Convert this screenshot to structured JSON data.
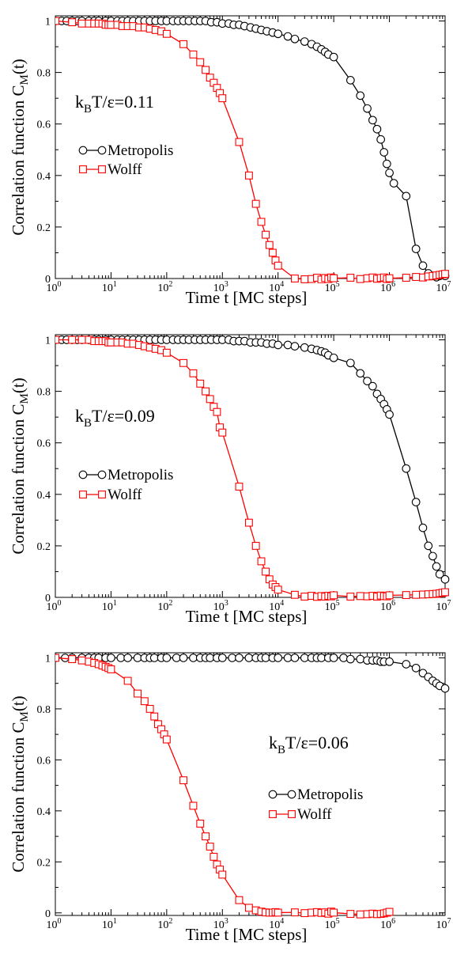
{
  "chart_data": [
    {
      "type": "line",
      "x_scale": "log",
      "xlim": [
        1,
        10000000
      ],
      "ylim": [
        0,
        1.02
      ],
      "xlabel": "Time t [MC steps]",
      "ylabel": "Correlation function C_M(t)",
      "x_ticks": [
        1,
        10,
        100,
        1000,
        10000,
        100000,
        1000000,
        10000000
      ],
      "y_ticks": [
        0,
        0.2,
        0.4,
        0.6,
        0.8,
        1
      ],
      "y_tick_labels": [
        "0",
        "0.2",
        "0.4",
        "0.6",
        "0.8",
        "1"
      ],
      "annotation": {
        "base": "k",
        "sub": "B",
        "rest": "T/ε=0.11"
      },
      "legend": {
        "position": "center-left"
      },
      "series": [
        {
          "name": "Metropolis",
          "color": "#000000",
          "marker": "circle",
          "x": [
            1,
            1.3,
            1.6,
            2,
            2.5,
            3,
            4,
            5,
            6,
            8,
            10,
            13,
            16,
            20,
            25,
            32,
            40,
            50,
            63,
            80,
            100,
            130,
            160,
            200,
            250,
            320,
            400,
            500,
            630,
            800,
            1000,
            1300,
            1600,
            2000,
            2500,
            3200,
            4000,
            5000,
            6300,
            8000,
            10000,
            15000,
            20000,
            30000,
            40000,
            50000,
            60000,
            70000,
            80000,
            100000,
            200000,
            300000,
            400000,
            500000,
            600000,
            700000,
            800000,
            900000,
            1000000,
            1200000,
            2000000,
            3000000,
            4000000,
            5000000,
            6000000,
            7000000,
            8000000,
            10000000
          ],
          "y": [
            1,
            1,
            1,
            1,
            1,
            1,
            1,
            1,
            1,
            1,
            1,
            1,
            1,
            1,
            1,
            1,
            1,
            1,
            1,
            1,
            1,
            1,
            1,
            1,
            1,
            1,
            1,
            1,
            0.995,
            0.995,
            0.99,
            0.99,
            0.985,
            0.985,
            0.98,
            0.975,
            0.97,
            0.965,
            0.96,
            0.955,
            0.95,
            0.94,
            0.93,
            0.92,
            0.91,
            0.9,
            0.89,
            0.88,
            0.87,
            0.86,
            0.77,
            0.71,
            0.66,
            0.615,
            0.58,
            0.54,
            0.49,
            0.445,
            0.41,
            0.37,
            0.32,
            0.115,
            0.05,
            0.02,
            0.01,
            0.005,
            0.01,
            0.01
          ]
        },
        {
          "name": "Wolff",
          "color": "#ff0000",
          "marker": "square",
          "x": [
            1,
            2,
            3,
            4,
            5,
            6,
            7,
            8,
            9,
            10,
            13,
            16,
            20,
            25,
            32,
            40,
            50,
            63,
            80,
            100,
            200,
            300,
            400,
            500,
            600,
            700,
            800,
            900,
            1000,
            2000,
            3000,
            4000,
            5000,
            6000,
            7000,
            8000,
            9000,
            10000,
            20000,
            30000,
            40000,
            50000,
            60000,
            70000,
            80000,
            90000,
            100000,
            200000,
            300000,
            400000,
            500000,
            600000,
            700000,
            800000,
            900000,
            1000000,
            2000000,
            3000000,
            4000000,
            5000000,
            6000000,
            7000000,
            8000000,
            9000000,
            10000000
          ],
          "y": [
            1,
            0.995,
            0.99,
            0.99,
            0.99,
            0.99,
            0.99,
            0.985,
            0.985,
            0.985,
            0.985,
            0.98,
            0.98,
            0.98,
            0.975,
            0.975,
            0.97,
            0.965,
            0.96,
            0.95,
            0.91,
            0.87,
            0.84,
            0.81,
            0.78,
            0.76,
            0.74,
            0.72,
            0.7,
            0.53,
            0.4,
            0.29,
            0.22,
            0.17,
            0.13,
            0.1,
            0.07,
            0.05,
            0,
            -0.003,
            -0.002,
            0.003,
            -0.004,
            0.002,
            -0.002,
            0.004,
            0.001,
            0.003,
            -0.002,
            0.001,
            0.004,
            -0.001,
            0.002,
            0.004,
            -0.002,
            0.001,
            0.003,
            0.006,
            0.004,
            0.008,
            0.01,
            0.012,
            0.014,
            0.016,
            0.018
          ]
        }
      ]
    },
    {
      "type": "line",
      "x_scale": "log",
      "xlim": [
        1,
        10000000
      ],
      "ylim": [
        0,
        1.02
      ],
      "xlabel": "Time t [MC steps]",
      "ylabel": "Correlation function C_M(t)",
      "x_ticks": [
        1,
        10,
        100,
        1000,
        10000,
        100000,
        1000000,
        10000000
      ],
      "y_ticks": [
        0,
        0.2,
        0.4,
        0.6,
        0.8,
        1
      ],
      "y_tick_labels": [
        "0",
        "0.2",
        "0.4",
        "0.6",
        "0.8",
        "1"
      ],
      "annotation": {
        "base": "k",
        "sub": "B",
        "rest": "T/ε=0.09"
      },
      "legend": {
        "position": "center-left"
      },
      "series": [
        {
          "name": "Metropolis",
          "color": "#000000",
          "marker": "circle",
          "x": [
            1,
            1.3,
            1.6,
            2,
            2.5,
            3,
            4,
            5,
            6,
            8,
            10,
            13,
            16,
            20,
            25,
            32,
            40,
            50,
            63,
            80,
            100,
            130,
            160,
            200,
            250,
            320,
            400,
            500,
            630,
            800,
            1000,
            1300,
            1600,
            2000,
            2500,
            3200,
            4000,
            5000,
            6300,
            8000,
            10000,
            15000,
            20000,
            30000,
            40000,
            50000,
            60000,
            70000,
            80000,
            100000,
            200000,
            300000,
            400000,
            500000,
            600000,
            700000,
            800000,
            900000,
            1000000,
            2000000,
            3000000,
            4000000,
            5000000,
            6000000,
            7000000,
            8000000,
            10000000
          ],
          "y": [
            1,
            1,
            1,
            1,
            1,
            1,
            1,
            1,
            1,
            1,
            1,
            1,
            1,
            1,
            1,
            1,
            1,
            1,
            1,
            1,
            1,
            1,
            1,
            1,
            1,
            1,
            1,
            1,
            1,
            1,
            1,
            1,
            0.995,
            0.995,
            0.995,
            0.99,
            0.99,
            0.99,
            0.985,
            0.985,
            0.98,
            0.98,
            0.975,
            0.97,
            0.965,
            0.96,
            0.955,
            0.95,
            0.94,
            0.93,
            0.91,
            0.87,
            0.84,
            0.82,
            0.79,
            0.77,
            0.75,
            0.73,
            0.71,
            0.5,
            0.37,
            0.27,
            0.2,
            0.16,
            0.12,
            0.09,
            0.07
          ]
        },
        {
          "name": "Wolff",
          "color": "#ff0000",
          "marker": "square",
          "x": [
            1,
            2,
            3,
            4,
            5,
            6,
            7,
            8,
            9,
            10,
            13,
            16,
            20,
            25,
            32,
            40,
            50,
            63,
            80,
            100,
            200,
            300,
            400,
            500,
            600,
            700,
            800,
            900,
            1000,
            2000,
            3000,
            4000,
            5000,
            6000,
            7000,
            8000,
            9000,
            10000,
            20000,
            30000,
            40000,
            50000,
            60000,
            70000,
            80000,
            90000,
            100000,
            200000,
            300000,
            400000,
            500000,
            600000,
            700000,
            800000,
            900000,
            1000000,
            2000000,
            3000000,
            4000000,
            5000000,
            6000000,
            7000000,
            8000000,
            9000000,
            10000000
          ],
          "y": [
            1,
            1,
            1,
            1,
            0.995,
            0.995,
            0.995,
            0.995,
            0.99,
            0.99,
            0.99,
            0.99,
            0.985,
            0.985,
            0.98,
            0.975,
            0.97,
            0.965,
            0.96,
            0.95,
            0.91,
            0.87,
            0.83,
            0.8,
            0.77,
            0.74,
            0.72,
            0.66,
            0.64,
            0.43,
            0.29,
            0.2,
            0.14,
            0.1,
            0.07,
            0.05,
            0.04,
            0.03,
            0.01,
            0.003,
            0.006,
            0.002,
            0.005,
            0.003,
            0.006,
            0.004,
            0.008,
            0.003,
            0.005,
            0.004,
            0.006,
            0.003,
            0.007,
            0.005,
            0.004,
            0.008,
            0.009,
            0.01,
            0.011,
            0.012,
            0.013,
            0.014,
            0.016,
            0.018,
            0.02
          ]
        }
      ]
    },
    {
      "type": "line",
      "x_scale": "log",
      "xlim": [
        1,
        10000000
      ],
      "ylim": [
        -0.01,
        1.02
      ],
      "xlabel": "Time t [MC steps]",
      "ylabel": "Correlation function C_M(t)",
      "x_ticks": [
        1,
        10,
        100,
        1000,
        10000,
        100000,
        1000000,
        10000000
      ],
      "y_ticks": [
        0,
        0.2,
        0.4,
        0.6,
        0.8,
        1
      ],
      "y_tick_labels": [
        "0",
        "0.2",
        "0.4",
        "0.6",
        "0.8",
        "1"
      ],
      "annotation": {
        "base": "k",
        "sub": "B",
        "rest": "T/ε=0.06"
      },
      "legend": {
        "position": "center-right"
      },
      "series": [
        {
          "name": "Metropolis",
          "color": "#000000",
          "marker": "circle",
          "x": [
            1,
            1.5,
            2,
            3,
            4,
            5,
            6,
            8,
            10,
            15,
            20,
            30,
            40,
            50,
            60,
            80,
            100,
            150,
            200,
            300,
            400,
            500,
            600,
            800,
            1000,
            1500,
            2000,
            3000,
            4000,
            5000,
            6000,
            8000,
            10000,
            15000,
            20000,
            30000,
            40000,
            50000,
            60000,
            80000,
            100000,
            150000,
            200000,
            300000,
            400000,
            500000,
            600000,
            700000,
            800000,
            1000000,
            2000000,
            3000000,
            4000000,
            5000000,
            6000000,
            7000000,
            8000000,
            10000000
          ],
          "y": [
            1,
            1,
            1,
            1,
            1,
            1,
            1,
            1,
            1,
            1,
            1,
            1,
            1,
            1,
            1,
            1,
            1,
            1,
            1,
            1,
            1,
            1,
            1,
            1,
            1,
            1,
            1,
            1,
            1,
            1,
            1,
            1,
            1,
            1,
            1,
            1,
            1,
            1,
            1,
            1,
            1,
            1,
            0.995,
            0.995,
            0.99,
            0.99,
            0.99,
            0.985,
            0.985,
            0.985,
            0.975,
            0.96,
            0.94,
            0.925,
            0.91,
            0.9,
            0.89,
            0.88
          ]
        },
        {
          "name": "Wolff",
          "color": "#ff0000",
          "marker": "square",
          "x": [
            1,
            2,
            3,
            4,
            5,
            6,
            7,
            8,
            9,
            10,
            20,
            30,
            40,
            50,
            60,
            70,
            80,
            90,
            100,
            200,
            300,
            400,
            500,
            600,
            700,
            800,
            900,
            1000,
            2000,
            3000,
            4000,
            5000,
            6000,
            7000,
            8000,
            9000,
            10000,
            20000,
            30000,
            40000,
            50000,
            60000,
            70000,
            80000,
            90000,
            100000,
            200000,
            300000,
            400000,
            500000,
            600000,
            700000,
            800000,
            900000,
            1000000
          ],
          "y": [
            1,
            0.995,
            0.99,
            0.985,
            0.98,
            0.975,
            0.97,
            0.965,
            0.96,
            0.955,
            0.91,
            0.86,
            0.83,
            0.8,
            0.77,
            0.74,
            0.72,
            0.7,
            0.68,
            0.52,
            0.42,
            0.35,
            0.3,
            0.26,
            0.22,
            0.19,
            0.17,
            0.15,
            0.05,
            0.02,
            0.01,
            0.005,
            0.002,
            0.001,
            0.001,
            0.003,
            0.001,
            0.002,
            -0.001,
            0.001,
            0.003,
            0,
            0.002,
            -0.003,
            0.005,
            0.001,
            -0.004,
            -0.006,
            -0.005,
            -0.003,
            -0.005,
            -0.004,
            -0.002,
            0.001,
            0.004
          ]
        }
      ]
    }
  ]
}
